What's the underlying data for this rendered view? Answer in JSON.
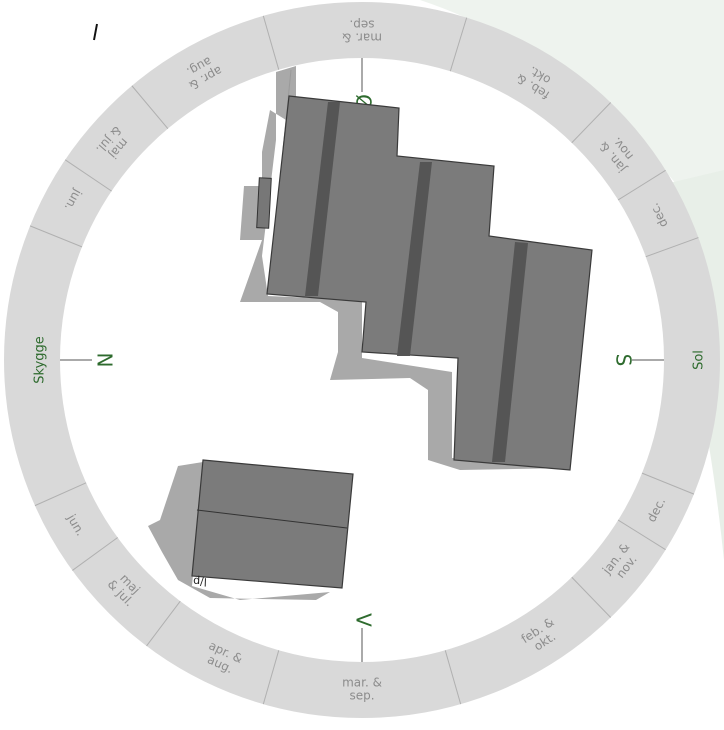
{
  "compass": {
    "north": "N",
    "south": "S",
    "east": "Ø",
    "west": "V",
    "left_label": "Skygge",
    "right_label": "Sol"
  },
  "months_upper": [
    {
      "label": "jun.",
      "angle": -61
    },
    {
      "label": "maj\n& jul.",
      "angle": -49
    },
    {
      "label": "apr. &\naug.",
      "angle": -29
    },
    {
      "label": "mar. &\nsep.",
      "angle": 0
    },
    {
      "label": "feb. &\nokt.",
      "angle": 32
    },
    {
      "label": "jan. &\nnov.",
      "angle": 51
    },
    {
      "label": "dec.",
      "angle": 64
    }
  ],
  "months_lower": [
    {
      "label": "jun.",
      "angle": -120
    },
    {
      "label": "maj\n& jul.",
      "angle": -134
    },
    {
      "label": "apr. &\naug.",
      "angle": -155
    },
    {
      "label": "mar. &\nsep.",
      "angle": 180
    },
    {
      "label": "feb. &\nokt.",
      "angle": 147
    },
    {
      "label": "jan. &\nnov.",
      "angle": 128
    },
    {
      "label": "dec.",
      "angle": 117
    }
  ],
  "building_label": "l/p",
  "colors": {
    "ring": "#d9d9d9",
    "ring_text": "#8c8c8c",
    "compass_text": "#2e6b2e",
    "roof": "#7b7b7b",
    "roof_dark": "#555555",
    "shadow": "#a8a8a8",
    "background_wash": "#eef3ee"
  }
}
